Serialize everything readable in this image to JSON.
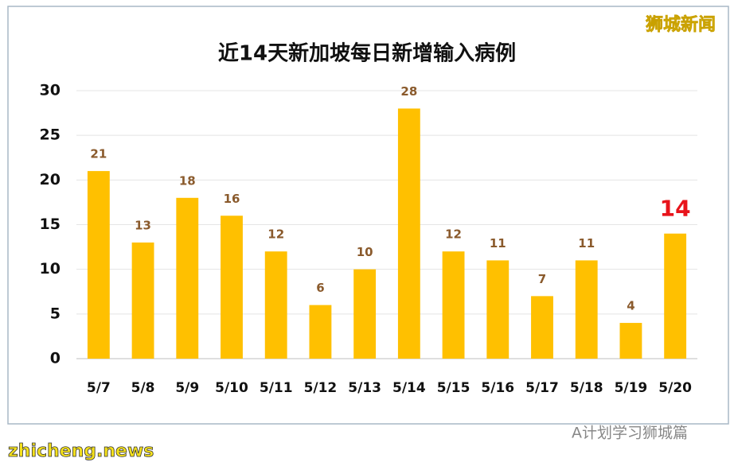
{
  "chart_data": {
    "type": "bar",
    "title": "近14天新加坡每日新增输入病例",
    "categories": [
      "5/7",
      "5/8",
      "5/9",
      "5/10",
      "5/11",
      "5/12",
      "5/13",
      "5/14",
      "5/15",
      "5/16",
      "5/17",
      "5/18",
      "5/19",
      "5/20"
    ],
    "values": [
      21,
      13,
      18,
      16,
      12,
      6,
      10,
      28,
      12,
      11,
      7,
      11,
      4,
      14
    ],
    "color": "#ffc000",
    "value_label_color": "#8a5a2c",
    "highlight": {
      "index": 13,
      "color": "#e8141b"
    },
    "ylim": [
      0,
      30
    ],
    "yticks": [
      0,
      5,
      10,
      15,
      20,
      25,
      30
    ],
    "grid": true
  },
  "watermarks": {
    "brand": "狮城新闻",
    "site": "zhicheng.news",
    "account": "A计划学习狮城篇"
  }
}
